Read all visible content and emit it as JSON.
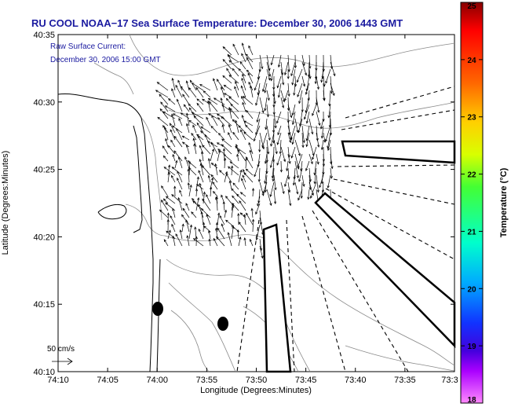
{
  "title": "RU COOL  NOAA−17  Sea Surface Temperature:  December 30, 2006 1443 GMT",
  "inset": {
    "line1": "Raw Surface Current:",
    "line2": "December 30, 2006 15:00 GMT"
  },
  "axes": {
    "xlabel": "Longitude (Degrees:Minutes)",
    "ylabel": "Latitude (Degrees:Minutes)",
    "xticks": [
      "74:10",
      "74:05",
      "74:00",
      "73:55",
      "73:50",
      "73:45",
      "73:40",
      "73:35",
      "73:3"
    ],
    "yticks": [
      "40:35",
      "40:30",
      "40:25",
      "40:20",
      "40:15",
      "40:10"
    ]
  },
  "scale_arrow": {
    "label": "50 cm/s"
  },
  "colorbar": {
    "label": "Temperature (°C)",
    "ticks": [
      "25",
      "24",
      "23",
      "22",
      "21",
      "20",
      "19",
      "18"
    ],
    "range": [
      18,
      25
    ]
  },
  "colors": {
    "title": "#1a1aa0",
    "coast": "#000000",
    "contour": "#888888"
  }
}
